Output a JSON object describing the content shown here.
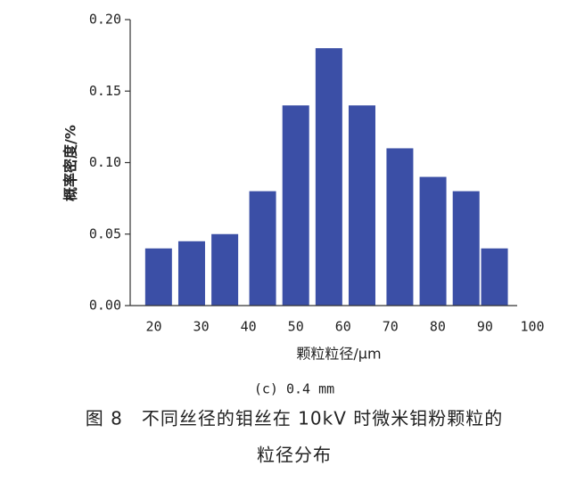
{
  "chart_data": {
    "type": "bar",
    "x": [
      21,
      28,
      35,
      43,
      50,
      57,
      64,
      72,
      79,
      86,
      92
    ],
    "values": [
      0.04,
      0.045,
      0.05,
      0.08,
      0.14,
      0.18,
      0.14,
      0.11,
      0.09,
      0.08,
      0.04
    ],
    "color": "#3b4fa6",
    "xlim": [
      15,
      100
    ],
    "xticks": [
      20,
      30,
      40,
      50,
      60,
      70,
      80,
      90,
      100
    ],
    "ylim": [
      0,
      0.2
    ],
    "yticks": [
      {
        "value": 0,
        "label": "0.00"
      },
      {
        "value": 0.05,
        "label": "0.05"
      },
      {
        "value": 0.1,
        "label": "0.10"
      },
      {
        "value": 0.15,
        "label": "0.15"
      },
      {
        "value": 0.2,
        "label": "0.20"
      }
    ],
    "xlabel": "颗粒粒径/μm",
    "ylabel": "概率密度/%",
    "subcaption": "(c) 0.4 mm",
    "caption": [
      "图 8　不同丝径的钼丝在 10kV 时微米钼粉颗粒的",
      "粒径分布"
    ]
  }
}
